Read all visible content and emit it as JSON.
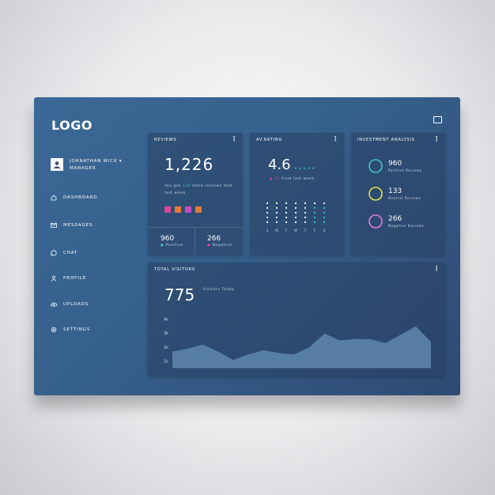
{
  "sidebar": {
    "logo": "LOGO",
    "user_name": "JOHNATHAN WICK ▾",
    "user_role": "MANAGER",
    "nav": [
      "DASHBOARD",
      "MESSAGES",
      "CHAT",
      "PROFILE",
      "UPLOADS",
      "SETTINGS"
    ]
  },
  "reviews": {
    "title": "REVIEWS",
    "total": "1,226",
    "note_before": "You got",
    "note_highlight": "120",
    "note_after": "more reviews that last week",
    "positive": "960",
    "positive_label": "Positive",
    "negative": "266",
    "negative_label": "Negative"
  },
  "rating": {
    "title": "AV.RATING",
    "value": "4.6",
    "change": "12",
    "change_text": "from last week",
    "days": [
      "S",
      "M",
      "T",
      "W",
      "T",
      "F",
      "S"
    ]
  },
  "investment": {
    "title": "INVESTMENT ANALYSIS",
    "items": [
      {
        "value": "960",
        "label": "Positive Reviews",
        "color": "#3fc7c0"
      },
      {
        "value": "133",
        "label": "Neutral Reviews",
        "color": "#e5e04a"
      },
      {
        "value": "266",
        "label": "Negative Reviews",
        "color": "#e07ad0"
      }
    ]
  },
  "visitors": {
    "title": "TOTAL VISITORS",
    "total": "775",
    "total_label": "Visitors Today",
    "yticks": [
      {
        "value": 1000,
        "label": "1k"
      },
      {
        "value": 2000,
        "label": "2k"
      },
      {
        "value": 3000,
        "label": "3k"
      },
      {
        "value": 4000,
        "label": "4k"
      }
    ],
    "values": [
      1700,
      1900,
      2200,
      1700,
      1100,
      1500,
      1800,
      1600,
      1500,
      2000,
      3000,
      2500,
      2600,
      2600,
      2300,
      2900,
      3500,
      2400
    ]
  }
}
